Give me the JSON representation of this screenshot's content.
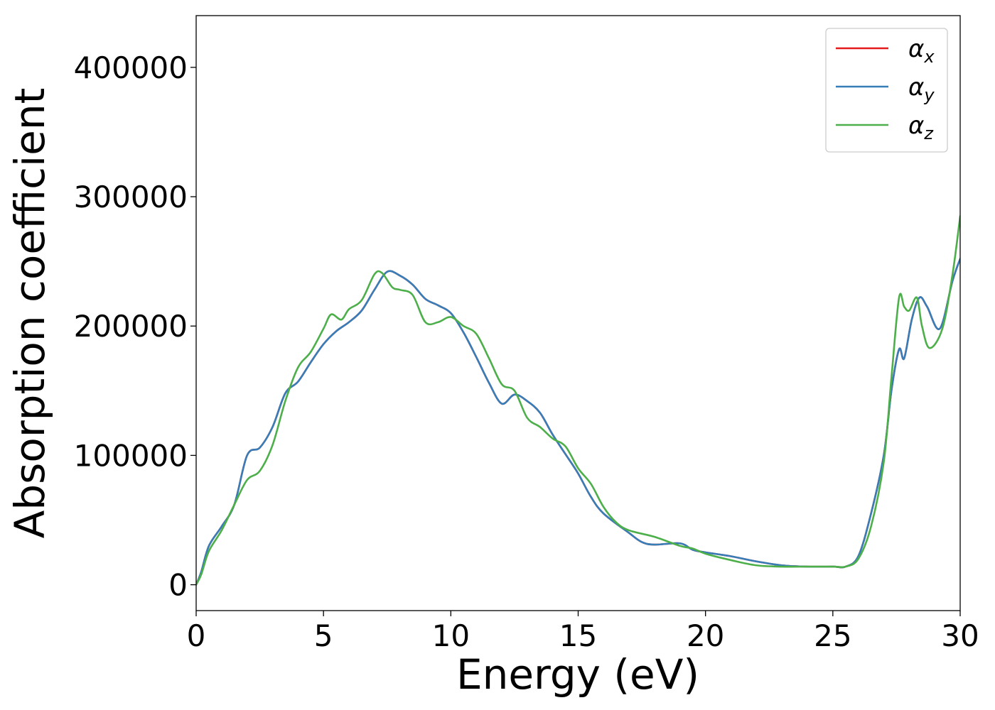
{
  "chart_data": {
    "type": "line",
    "title": "",
    "xlabel": "Energy (eV)",
    "ylabel": "Absorption coefficient",
    "xlim": [
      0,
      30
    ],
    "ylim": [
      -20000,
      440000
    ],
    "xticks": [
      0,
      5,
      10,
      15,
      20,
      25,
      30
    ],
    "xtick_labels": [
      "0",
      "5",
      "10",
      "15",
      "20",
      "25",
      "30"
    ],
    "yticks": [
      0,
      100000,
      200000,
      300000,
      400000
    ],
    "ytick_labels": [
      "0",
      "100000",
      "200000",
      "300000",
      "400000"
    ],
    "grid": false,
    "legend_position": "top-right",
    "series": [
      {
        "name": "αx",
        "legend_base": "α",
        "legend_sub": "x",
        "color": "#e41a1c",
        "x": [
          0,
          0.2,
          0.5,
          1,
          1.5,
          2,
          2.5,
          3,
          3.5,
          4,
          4.5,
          5,
          5.5,
          6,
          6.5,
          7,
          7.5,
          8,
          8.5,
          9,
          9.5,
          10,
          10.5,
          11,
          11.5,
          12,
          12.5,
          13,
          13.5,
          14,
          14.5,
          15,
          15.5,
          16,
          17,
          17.5,
          18,
          19,
          19.5,
          20,
          21,
          22,
          23,
          24,
          25,
          25.5,
          26,
          26.5,
          27,
          27.3,
          27.6,
          27.8,
          28.1,
          28.4,
          28.7,
          29.2,
          29.7,
          30
        ],
        "y": [
          0,
          10000,
          30000,
          45000,
          62000,
          100000,
          106000,
          122000,
          148000,
          157000,
          172000,
          186000,
          196000,
          203000,
          212000,
          228000,
          242000,
          239000,
          232000,
          221000,
          216000,
          210000,
          195000,
          176000,
          156000,
          140000,
          147000,
          142000,
          133000,
          116000,
          101000,
          86000,
          68000,
          55000,
          40000,
          33000,
          31000,
          32000,
          27000,
          25000,
          22000,
          18000,
          15000,
          14000,
          14000,
          14000,
          22000,
          55000,
          100000,
          150000,
          182000,
          175000,
          205000,
          222000,
          215000,
          198000,
          235000,
          252000
        ]
      },
      {
        "name": "αy",
        "legend_base": "α",
        "legend_sub": "y",
        "color": "#377eb8",
        "x": [
          0,
          0.2,
          0.5,
          1,
          1.5,
          2,
          2.5,
          3,
          3.5,
          4,
          4.5,
          5,
          5.5,
          6,
          6.5,
          7,
          7.5,
          8,
          8.5,
          9,
          9.5,
          10,
          10.5,
          11,
          11.5,
          12,
          12.5,
          13,
          13.5,
          14,
          14.5,
          15,
          15.5,
          16,
          17,
          17.5,
          18,
          19,
          19.5,
          20,
          21,
          22,
          23,
          24,
          25,
          25.5,
          26,
          26.5,
          27,
          27.3,
          27.6,
          27.8,
          28.1,
          28.4,
          28.7,
          29.2,
          29.7,
          30
        ],
        "y": [
          0,
          10000,
          30000,
          45000,
          62000,
          100000,
          106000,
          122000,
          148000,
          157000,
          172000,
          186000,
          196000,
          203000,
          212000,
          228000,
          242000,
          239000,
          232000,
          221000,
          216000,
          210000,
          195000,
          176000,
          156000,
          140000,
          147000,
          142000,
          133000,
          116000,
          101000,
          86000,
          68000,
          55000,
          40000,
          33000,
          31000,
          32000,
          27000,
          25000,
          22000,
          18000,
          15000,
          14000,
          14000,
          14000,
          22000,
          55000,
          100000,
          150000,
          182000,
          175000,
          205000,
          222000,
          215000,
          198000,
          235000,
          252000
        ]
      },
      {
        "name": "αz",
        "legend_base": "α",
        "legend_sub": "z",
        "color": "#4daf4a",
        "x": [
          0,
          0.2,
          0.5,
          1,
          1.5,
          2,
          2.5,
          3,
          3.5,
          4,
          4.5,
          5,
          5.3,
          5.7,
          6,
          6.5,
          7,
          7.3,
          7.7,
          8,
          8.5,
          9,
          9.5,
          10,
          10.5,
          11,
          11.5,
          12,
          12.5,
          13,
          13.5,
          14,
          14.5,
          15,
          15.5,
          16,
          16.5,
          17,
          18,
          19,
          19.5,
          20,
          21,
          22,
          23,
          24,
          25,
          25.5,
          26,
          26.5,
          27,
          27.3,
          27.6,
          27.8,
          28,
          28.3,
          28.5,
          28.8,
          29.3,
          29.7,
          30
        ],
        "y": [
          0,
          8000,
          26000,
          42000,
          62000,
          81000,
          88000,
          108000,
          142000,
          168000,
          180000,
          198000,
          209000,
          205000,
          213000,
          220000,
          240000,
          241000,
          230000,
          228000,
          224000,
          203000,
          203000,
          207000,
          200000,
          194000,
          175000,
          155000,
          150000,
          129000,
          122000,
          113000,
          107000,
          90000,
          78000,
          60000,
          48000,
          42000,
          37000,
          30000,
          28000,
          24000,
          19000,
          15000,
          14000,
          14000,
          14000,
          14000,
          20000,
          45000,
          95000,
          160000,
          222000,
          215000,
          212000,
          222000,
          200000,
          183000,
          198000,
          240000,
          285000
        ]
      }
    ]
  }
}
